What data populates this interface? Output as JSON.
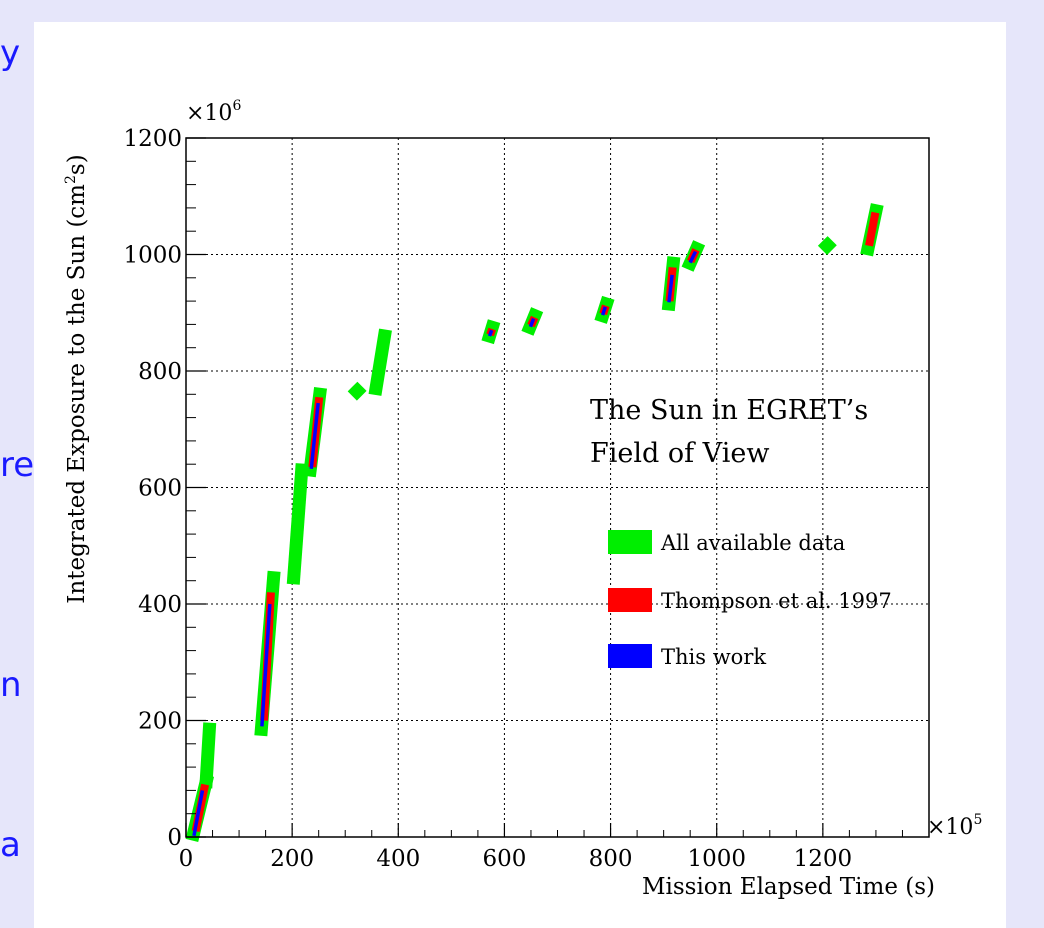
{
  "side_text": [
    "y",
    "re",
    "n",
    "a"
  ],
  "chart_data": {
    "type": "scatter",
    "title": "The Sun in EGRET's Field of View",
    "title_lines": [
      "The Sun in EGRET’s",
      "Field of View"
    ],
    "xlabel": "Mission Elapsed Time (s)",
    "ylabel": "Integrated Exposure to the Sun (cm²s)",
    "ylabel_parts": {
      "pre": "Integrated Exposure to the Sun (cm",
      "sup": "2",
      "post": "s)"
    },
    "x_multiplier": "×10",
    "x_multiplier_exp": "5",
    "y_multiplier": "×10",
    "y_multiplier_exp": "6",
    "xlim": [
      0,
      1400
    ],
    "ylim": [
      0,
      1200
    ],
    "x_ticks": [
      0,
      200,
      400,
      600,
      800,
      1000,
      1200
    ],
    "y_ticks": [
      0,
      200,
      400,
      600,
      800,
      1000,
      1200
    ],
    "grid": true,
    "legend_position": "center-right",
    "series": [
      {
        "name": "All available data",
        "color": "#00ee00",
        "segments": [
          [
            [
              14,
              5
            ],
            [
              38,
              95
            ]
          ],
          [
            [
              38,
              95
            ],
            [
              44,
              185
            ]
          ],
          [
            [
              142,
              185
            ],
            [
              165,
              445
            ]
          ],
          [
            [
              203,
              445
            ],
            [
              218,
              630
            ]
          ],
          [
            [
              234,
              630
            ],
            [
              252,
              760
            ]
          ],
          [
            [
              322,
              765
            ],
            [
              322,
              765
            ]
          ],
          [
            [
              358,
              770
            ],
            [
              374,
              860
            ]
          ],
          [
            [
              572,
              860
            ],
            [
              577,
              875
            ]
          ],
          [
            [
              648,
              875
            ],
            [
              657,
              895
            ]
          ],
          [
            [
              785,
              895
            ],
            [
              792,
              915
            ]
          ],
          [
            [
              910,
              915
            ],
            [
              918,
              985
            ]
          ],
          [
            [
              950,
              985
            ],
            [
              962,
              1010
            ]
          ],
          [
            [
              1208,
              1015
            ],
            [
              1208,
              1015
            ]
          ],
          [
            [
              1285,
              1010
            ],
            [
              1300,
              1075
            ]
          ]
        ]
      },
      {
        "name": "Thompson et al. 1997",
        "color": "#ff0000",
        "segments": [
          [
            [
              18,
              10
            ],
            [
              36,
              90
            ]
          ],
          [
            [
              147,
              200
            ],
            [
              160,
              420
            ]
          ],
          [
            [
              238,
              635
            ],
            [
              251,
              755
            ]
          ],
          [
            [
              573,
              862
            ],
            [
              577,
              872
            ]
          ],
          [
            [
              650,
              878
            ],
            [
              657,
              892
            ]
          ],
          [
            [
              786,
              898
            ],
            [
              791,
              912
            ]
          ],
          [
            [
              911,
              920
            ],
            [
              917,
              978
            ]
          ],
          [
            [
              951,
              988
            ],
            [
              961,
              1008
            ]
          ],
          [
            [
              1287,
              1015
            ],
            [
              1299,
              1072
            ]
          ]
        ]
      },
      {
        "name": "This work",
        "color": "#0000ff",
        "segments": [
          [
            [
              15,
              2
            ],
            [
              31,
              80
            ]
          ],
          [
            [
              143,
              190
            ],
            [
              158,
              400
            ]
          ],
          [
            [
              236,
              632
            ],
            [
              249,
              745
            ]
          ],
          [
            [
              572,
              860
            ],
            [
              576,
              870
            ]
          ],
          [
            [
              649,
              876
            ],
            [
              655,
              890
            ]
          ],
          [
            [
              785,
              896
            ],
            [
              790,
              910
            ]
          ],
          [
            [
              910,
              918
            ],
            [
              916,
              965
            ]
          ],
          [
            [
              950,
              986
            ],
            [
              960,
              1005
            ]
          ]
        ]
      }
    ]
  }
}
